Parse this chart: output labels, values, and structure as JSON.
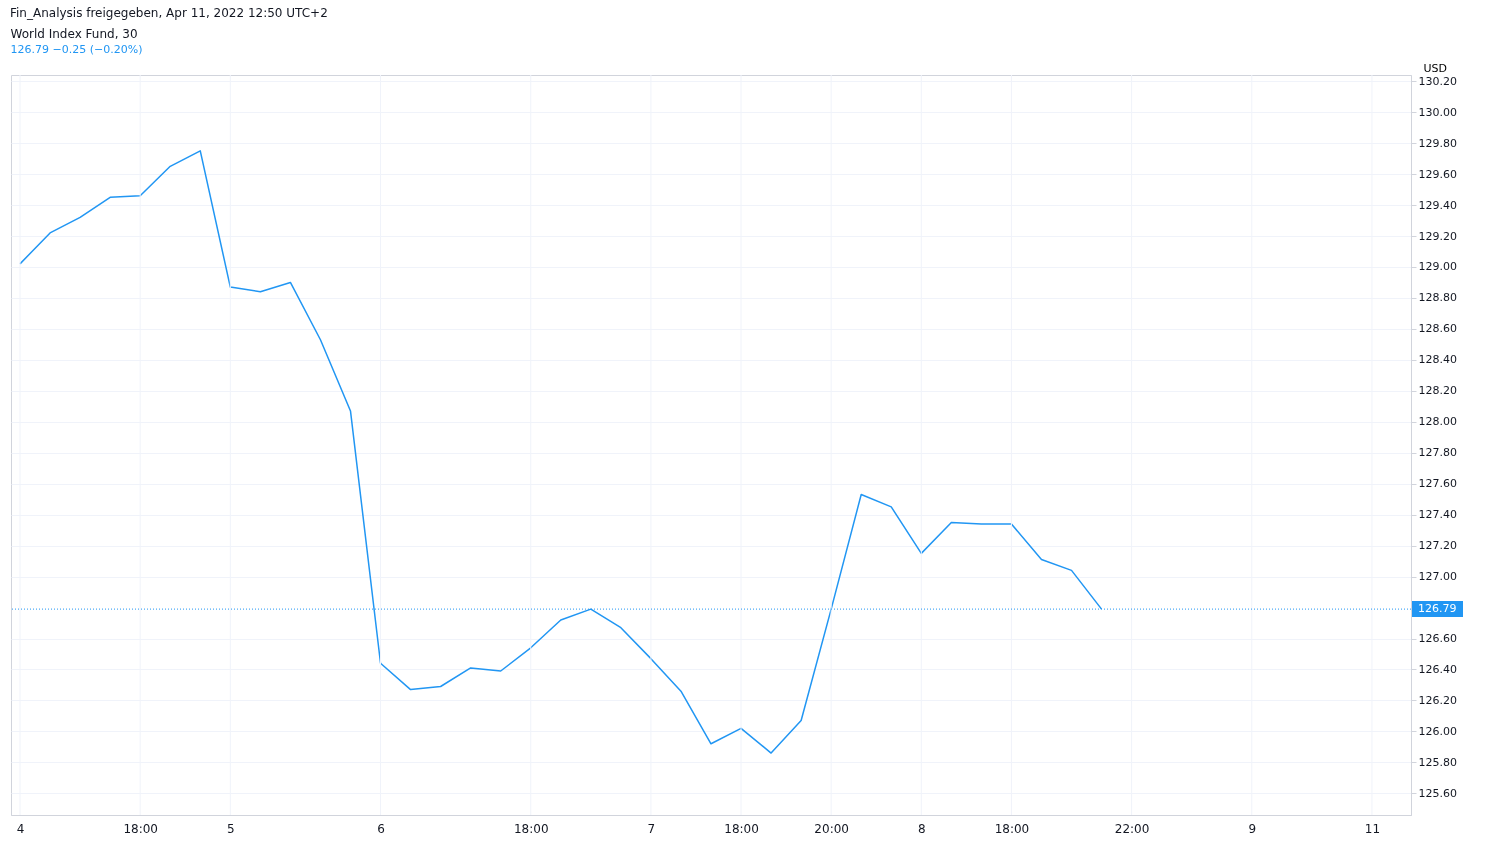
{
  "chart_data": {
    "type": "line",
    "title": "World Index Fund, 30",
    "subtitle": "126.79 −0.25 (−0.20%)",
    "ylabel": "USD",
    "annotations": [
      "Fin_Analysis freigegeben, Apr 11, 2022 12:50 UTC+2"
    ],
    "categories": [
      "4",
      null,
      null,
      null,
      "18:00",
      null,
      null,
      "5",
      null,
      null,
      null,
      null,
      "6",
      null,
      null,
      null,
      null,
      "18:00",
      null,
      null,
      null,
      "7",
      null,
      null,
      "18:00",
      null,
      null,
      "20:00",
      null,
      null,
      "8",
      null,
      null,
      "18:00",
      null,
      null,
      null,
      "22:00",
      null,
      null,
      null,
      "9",
      null,
      null,
      null,
      "11",
      null
    ],
    "series": [
      {
        "color": "#2196f3",
        "values": [
          129.02,
          129.22,
          129.32,
          129.45,
          129.46,
          129.65,
          129.75,
          128.87,
          128.84,
          128.9,
          128.53,
          128.07,
          126.44,
          126.27,
          126.29,
          126.41,
          126.39,
          126.54,
          126.72,
          126.79,
          126.67,
          126.47,
          126.26,
          125.92,
          126.02,
          125.86,
          126.07,
          126.79,
          127.53,
          127.45,
          127.15,
          127.35,
          127.34,
          127.34,
          127.11,
          127.04,
          126.79,
          null,
          null,
          null,
          null,
          null,
          null,
          null,
          null,
          null,
          null
        ]
      }
    ],
    "ylim": [
      125.46,
      130.24
    ],
    "yticks": [
      {
        "value": 125.6,
        "label": "125.60"
      },
      {
        "value": 125.8,
        "label": "125.80"
      },
      {
        "value": 126,
        "label": "126.00"
      },
      {
        "value": 126.2,
        "label": "126.20"
      },
      {
        "value": 126.4,
        "label": "126.40"
      },
      {
        "value": 126.6,
        "label": "126.60"
      },
      {
        "value": 127,
        "label": "127.00"
      },
      {
        "value": 127.2,
        "label": "127.20"
      },
      {
        "value": 127.4,
        "label": "127.40"
      },
      {
        "value": 127.6,
        "label": "127.60"
      },
      {
        "value": 127.8,
        "label": "127.80"
      },
      {
        "value": 128,
        "label": "128.00"
      },
      {
        "value": 128.2,
        "label": "128.20"
      },
      {
        "value": 128.4,
        "label": "128.40"
      },
      {
        "value": 128.6,
        "label": "128.60"
      },
      {
        "value": 128.8,
        "label": "128.80"
      },
      {
        "value": 129,
        "label": "129.00"
      },
      {
        "value": 129.2,
        "label": "129.20"
      },
      {
        "value": 129.4,
        "label": "129.40"
      },
      {
        "value": 129.6,
        "label": "129.60"
      },
      {
        "value": 129.8,
        "label": "129.80"
      },
      {
        "value": 130,
        "label": "130.00"
      },
      {
        "value": 130.2,
        "label": "130.20"
      }
    ],
    "grid": true,
    "ref_lines": [
      {
        "axis": "y",
        "value": 126.79,
        "label": "126.79",
        "color": "#2196f3",
        "line_style": "dotted"
      }
    ]
  }
}
